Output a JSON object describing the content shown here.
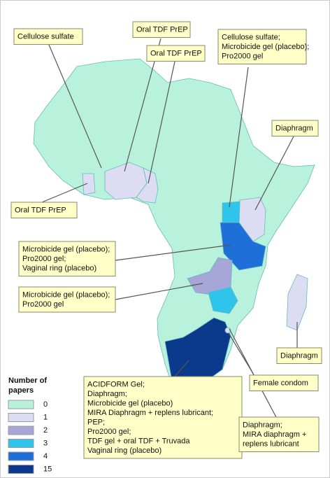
{
  "legend": {
    "title": [
      "Number of",
      "papers"
    ],
    "items": [
      {
        "label": "0",
        "color": "#b9f2dc"
      },
      {
        "label": "1",
        "color": "#dcdcf2"
      },
      {
        "label": "2",
        "color": "#a6a6d8"
      },
      {
        "label": "3",
        "color": "#2ec4ec"
      },
      {
        "label": "4",
        "color": "#1f6fd8"
      },
      {
        "label": "15",
        "color": "#0b3a8c"
      }
    ]
  },
  "callouts": [
    {
      "lines": [
        "Cellulose sulfate"
      ]
    },
    {
      "lines": [
        "Oral TDF PrEP"
      ]
    },
    {
      "lines": [
        "Oral TDF PrEP"
      ]
    },
    {
      "lines": [
        "Cellulose sulfate;",
        "Microbicide gel (placebo);",
        "Pro2000 gel"
      ]
    },
    {
      "lines": [
        "Diaphragm"
      ]
    },
    {
      "lines": [
        "Oral TDF PrEP"
      ]
    },
    {
      "lines": [
        "Microbicide gel (placebo);",
        "Pro2000 gel;",
        "Vaginal ring (placebo)"
      ]
    },
    {
      "lines": [
        "Microbicide gel (placebo);",
        "Pro2000 gel"
      ]
    },
    {
      "lines": [
        "Diaphragm"
      ]
    },
    {
      "lines": [
        "Female condom"
      ]
    },
    {
      "lines": [
        "ACIDFORM Gel;",
        "Diaphragm;",
        "Microbicide gel (placebo)",
        "MIRA Diaphragm + replens lubricant;",
        "PEP;",
        "Pro2000 gel;",
        "TDF gel + oral TDF + Truvada",
        "Vaginal ring (placebo)"
      ]
    },
    {
      "lines": [
        "Diaphragm;",
        "MIRA diaphragm +",
        "replens lubricant"
      ]
    }
  ]
}
